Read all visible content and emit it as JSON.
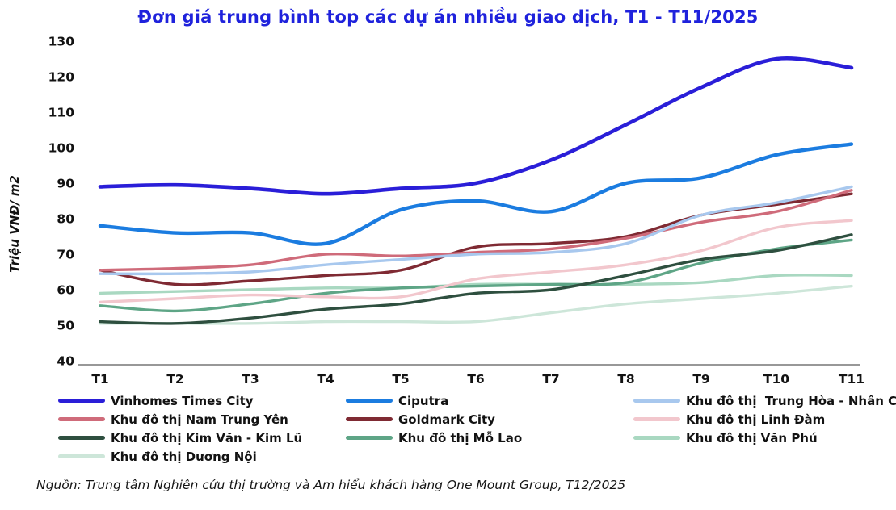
{
  "source_note": "Nguồn:  Trung tâm Nghiên cứu thị trường và Am hiểu khách hàng One Mount Group, T12/2025",
  "chart_data": {
    "type": "line",
    "title": "Đơn giá trung bình top các dự án nhiều giao dịch, T1 - T11/2025",
    "xlabel": "",
    "ylabel": "Triệu VNĐ/ m2",
    "categories": [
      "T1",
      "T2",
      "T3",
      "T4",
      "T5",
      "T6",
      "T7",
      "T8",
      "T9",
      "T10",
      "T11"
    ],
    "ylim": [
      40,
      130
    ],
    "yticks": [
      130,
      120,
      110,
      100,
      90,
      80,
      70,
      60,
      50,
      40
    ],
    "grid": false,
    "legend_position": "bottom",
    "series": [
      {
        "name": "Vinhomes Times City",
        "color": "#2a1ed8",
        "width": 4.6,
        "values": [
          89,
          89.5,
          88.5,
          87,
          88.5,
          90,
          96.5,
          106.5,
          117,
          125,
          122.5
        ]
      },
      {
        "name": "Ciputra",
        "color": "#1b7ce0",
        "width": 4.4,
        "values": [
          78,
          76,
          76,
          73,
          82.5,
          85,
          82,
          90,
          91.5,
          98,
          101
        ]
      },
      {
        "name": "Khu đô thị  Trung Hòa - Nhân Chính",
        "color": "#a8c8ee",
        "width": 3.4,
        "values": [
          64.5,
          64.5,
          65,
          67,
          68.5,
          70,
          70.5,
          73,
          81,
          84.5,
          89
        ]
      },
      {
        "name": "Khu đô thị Nam Trung Yên",
        "color": "#cf6b7a",
        "width": 3.4,
        "values": [
          65.5,
          66,
          67,
          70,
          69.5,
          70.5,
          71.5,
          74.5,
          79,
          82,
          88
        ]
      },
      {
        "name": "Goldmark City",
        "color": "#7f2a33",
        "width": 3.4,
        "values": [
          65.5,
          61.5,
          62.5,
          64,
          65.5,
          72,
          73,
          75,
          81,
          84,
          87
        ]
      },
      {
        "name": "Khu đô thị Linh Đàm",
        "color": "#f2c7cd",
        "width": 3.4,
        "values": [
          56.5,
          57.5,
          58.5,
          58,
          58,
          63,
          65,
          67,
          71,
          77.5,
          79.5
        ]
      },
      {
        "name": "Khu đô thị Kim Văn - Kim Lũ",
        "color": "#2e4f3f",
        "width": 3.4,
        "values": [
          51,
          50.5,
          52,
          54.5,
          56,
          59,
          60,
          64,
          68.5,
          71,
          75.5
        ]
      },
      {
        "name": "Khu đô thị Mỗ Lao",
        "color": "#5ea586",
        "width": 3.4,
        "values": [
          55.5,
          54,
          56,
          59,
          60.5,
          61,
          61.5,
          62,
          67.5,
          71.5,
          74
        ]
      },
      {
        "name": "Khu đô thị Văn Phú",
        "color": "#a9d8c1",
        "width": 3.4,
        "values": [
          59,
          59.5,
          60,
          60.5,
          60.5,
          61.5,
          61.5,
          61.5,
          62,
          64,
          64
        ]
      },
      {
        "name": "Khu đô thị Dương Nội",
        "color": "#cde6d9",
        "width": 3.4,
        "values": [
          50.5,
          50.5,
          50.5,
          51,
          51,
          51,
          53.5,
          56,
          57.5,
          59,
          61
        ]
      }
    ]
  },
  "colors": {
    "title": "#1f22dc",
    "axis_text": "#121212",
    "axis_line": "#5a5a5a",
    "background": "#ffffff"
  }
}
